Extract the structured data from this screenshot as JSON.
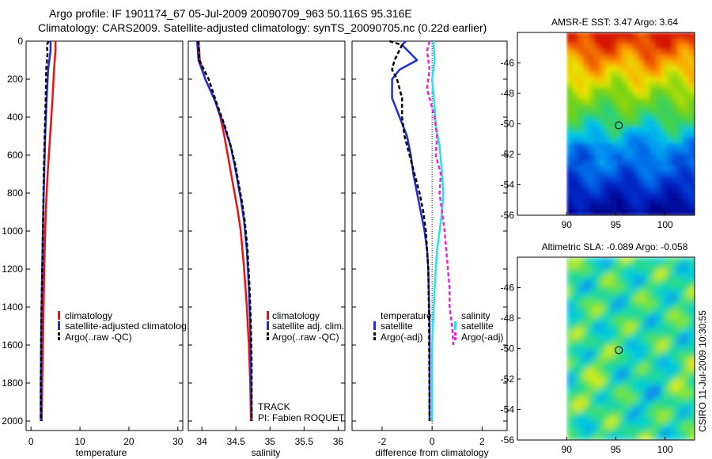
{
  "header": {
    "line1": "Argo profile: IF 1901174_67 05-Jul-2009 20090709_963 50.116S 95.316E",
    "line2": "Climatology: CARS2009. Satellite-adjusted climatology: synTS_20090705.nc (0.22d earlier)"
  },
  "side_label": "CSIRO 11-Jul-2009 10:30:55",
  "colors": {
    "climatology": "#ee1111",
    "satellite": "#1f2fd6",
    "argo": "#000000",
    "salinity_sat": "#22e5e8",
    "salinity_argo": "#ee22dd"
  },
  "chart_data": [
    {
      "id": "temperature",
      "type": "line",
      "xlabel": "temperature",
      "ylabel": "",
      "xlim": [
        -1,
        31
      ],
      "ylim": [
        2050,
        0
      ],
      "xticks": [
        0,
        10,
        20,
        30
      ],
      "yticks": [
        0,
        200,
        400,
        600,
        800,
        1000,
        1200,
        1400,
        1600,
        1800,
        2000
      ],
      "series": [
        {
          "name": "climatology",
          "color": "#ee1111",
          "dash": "",
          "width": 2.5,
          "points": [
            [
              5.0,
              0
            ],
            [
              5.0,
              50
            ],
            [
              4.7,
              150
            ],
            [
              4.4,
              300
            ],
            [
              3.9,
              500
            ],
            [
              3.4,
              700
            ],
            [
              3.0,
              900
            ],
            [
              2.7,
              1200
            ],
            [
              2.5,
              1500
            ],
            [
              2.3,
              1800
            ],
            [
              2.2,
              2000
            ]
          ]
        },
        {
          "name": "satellite-adjusted climatology",
          "color": "#1f2fd6",
          "dash": "",
          "width": 2.5,
          "points": [
            [
              4.0,
              0
            ],
            [
              4.0,
              50
            ],
            [
              3.5,
              150
            ],
            [
              3.2,
              300
            ],
            [
              2.9,
              500
            ],
            [
              2.7,
              700
            ],
            [
              2.5,
              900
            ],
            [
              2.3,
              1200
            ],
            [
              2.1,
              1500
            ],
            [
              2.0,
              1800
            ],
            [
              2.0,
              2000
            ]
          ]
        },
        {
          "name": "Argo(..raw -QC)",
          "color": "#000000",
          "dash": "5,3",
          "width": 2.5,
          "points": [
            [
              3.6,
              0
            ],
            [
              3.2,
              20
            ],
            [
              3.4,
              60
            ],
            [
              3.1,
              150
            ],
            [
              3.0,
              300
            ],
            [
              2.8,
              500
            ],
            [
              2.6,
              700
            ],
            [
              2.5,
              900
            ],
            [
              2.3,
              1200
            ],
            [
              2.1,
              1500
            ],
            [
              2.0,
              1800
            ],
            [
              2.0,
              2000
            ]
          ]
        }
      ],
      "legend": {
        "entries": [
          "climatology",
          "satellite-adjusted climatolog",
          "Argo(..raw -QC)"
        ]
      }
    },
    {
      "id": "salinity",
      "type": "line",
      "xlabel": "salinity",
      "xlim": [
        33.8,
        36.1
      ],
      "ylim": [
        2050,
        0
      ],
      "xticks": [
        34,
        34.5,
        35,
        35.5,
        36
      ],
      "tick_labels": [
        "34",
        "34.5",
        "35",
        "35.5",
        "36"
      ],
      "series": [
        {
          "name": "climatology",
          "color": "#ee1111",
          "dash": "",
          "width": 2.5,
          "points": [
            [
              33.95,
              0
            ],
            [
              33.97,
              100
            ],
            [
              34.05,
              200
            ],
            [
              34.18,
              300
            ],
            [
              34.27,
              400
            ],
            [
              34.33,
              500
            ],
            [
              34.38,
              600
            ],
            [
              34.43,
              700
            ],
            [
              34.48,
              800
            ],
            [
              34.53,
              900
            ],
            [
              34.57,
              1000
            ],
            [
              34.62,
              1200
            ],
            [
              34.66,
              1400
            ],
            [
              34.69,
              1600
            ],
            [
              34.71,
              1800
            ],
            [
              34.72,
              2000
            ]
          ]
        },
        {
          "name": "satellite adj. clim.",
          "color": "#1f2fd6",
          "dash": "",
          "width": 2.5,
          "points": [
            [
              33.93,
              0
            ],
            [
              33.95,
              100
            ],
            [
              34.05,
              200
            ],
            [
              34.2,
              320
            ],
            [
              34.33,
              450
            ],
            [
              34.42,
              550
            ],
            [
              34.48,
              650
            ],
            [
              34.53,
              750
            ],
            [
              34.58,
              850
            ],
            [
              34.62,
              950
            ],
            [
              34.66,
              1100
            ],
            [
              34.69,
              1300
            ],
            [
              34.71,
              1500
            ],
            [
              34.72,
              1700
            ],
            [
              34.73,
              2000
            ]
          ]
        },
        {
          "name": "Argo(..raw -QC)",
          "color": "#000000",
          "dash": "5,3",
          "width": 2.5,
          "points": [
            [
              33.95,
              0
            ],
            [
              33.96,
              100
            ],
            [
              34.1,
              200
            ],
            [
              34.21,
              320
            ],
            [
              34.34,
              450
            ],
            [
              34.43,
              560
            ],
            [
              34.49,
              650
            ],
            [
              34.54,
              750
            ],
            [
              34.59,
              850
            ],
            [
              34.63,
              950
            ],
            [
              34.67,
              1100
            ],
            [
              34.7,
              1300
            ],
            [
              34.72,
              1500
            ],
            [
              34.73,
              1700
            ],
            [
              34.73,
              2000
            ]
          ]
        }
      ],
      "legend": {
        "entries": [
          "climatology",
          "satellite adj. clim.",
          "Argo(..raw -QC)"
        ]
      },
      "annotations": [
        "TRACK",
        "PI: Fabien ROQUET"
      ]
    },
    {
      "id": "difference",
      "type": "line",
      "xlabel": "difference from climatology",
      "xlim": [
        -3.2,
        3.0
      ],
      "ylim": [
        2050,
        0
      ],
      "xticks": [
        -2,
        0,
        2
      ],
      "tick_labels": [
        "-2",
        "0",
        "2"
      ],
      "series": [
        {
          "name": "temperature satellite",
          "color": "#1f2fd6",
          "dash": "",
          "width": 2.5,
          "points": [
            [
              -1.05,
              0
            ],
            [
              -1.2,
              20
            ],
            [
              -0.6,
              100
            ],
            [
              -1.3,
              150
            ],
            [
              -1.6,
              200
            ],
            [
              -1.6,
              300
            ],
            [
              -1.3,
              400
            ],
            [
              -1.0,
              500
            ],
            [
              -0.85,
              600
            ],
            [
              -0.75,
              700
            ],
            [
              -0.6,
              800
            ],
            [
              -0.45,
              900
            ],
            [
              -0.3,
              1000
            ],
            [
              -0.2,
              1100
            ],
            [
              -0.15,
              1200
            ],
            [
              -0.1,
              1500
            ],
            [
              -0.1,
              2000
            ]
          ]
        },
        {
          "name": "temperature Argo(-adj)",
          "color": "#000000",
          "dash": "5,3",
          "width": 2.5,
          "points": [
            [
              -1.7,
              0
            ],
            [
              -1.2,
              20
            ],
            [
              -1.5,
              100
            ],
            [
              -1.6,
              150
            ],
            [
              -1.4,
              200
            ],
            [
              -1.2,
              300
            ],
            [
              -1.2,
              400
            ],
            [
              -1.1,
              500
            ],
            [
              -0.9,
              600
            ],
            [
              -0.7,
              700
            ],
            [
              -0.5,
              800
            ],
            [
              -0.35,
              900
            ],
            [
              -0.25,
              1000
            ],
            [
              -0.15,
              1200
            ],
            [
              -0.12,
              1500
            ],
            [
              -0.1,
              2000
            ]
          ]
        },
        {
          "name": "salinity satellite",
          "color": "#22e5e8",
          "dash": "",
          "width": 2.5,
          "points": [
            [
              0.05,
              0
            ],
            [
              0.1,
              100
            ],
            [
              0.0,
              200
            ],
            [
              0.1,
              350
            ],
            [
              0.15,
              450
            ],
            [
              0.3,
              550
            ],
            [
              0.4,
              700
            ],
            [
              0.45,
              800
            ],
            [
              0.4,
              900
            ],
            [
              0.3,
              1000
            ],
            [
              0.2,
              1100
            ],
            [
              0.1,
              1300
            ],
            [
              0.0,
              1600
            ],
            [
              0.0,
              2000
            ]
          ]
        },
        {
          "name": "salinity Argo(-adj)",
          "color": "#ee22dd",
          "dash": "5,3",
          "width": 2.5,
          "points": [
            [
              -0.1,
              0
            ],
            [
              -0.2,
              50
            ],
            [
              -0.1,
              150
            ],
            [
              -0.2,
              250
            ],
            [
              0.1,
              400
            ],
            [
              0.2,
              500
            ],
            [
              0.15,
              600
            ],
            [
              0.35,
              700
            ],
            [
              0.3,
              800
            ],
            [
              0.5,
              1000
            ],
            [
              0.6,
              1150
            ],
            [
              0.7,
              1300
            ],
            [
              0.7,
              1400
            ],
            [
              0.8,
              1500
            ],
            [
              0.85,
              1600
            ]
          ]
        }
      ],
      "legend": {
        "temperature_title": "temperature",
        "salinity_title": "salinity",
        "entries": [
          "satellite",
          "Argo(-adj)",
          "satellite",
          "Argo(-adj)"
        ]
      }
    },
    {
      "id": "sst_map",
      "type": "heatmap",
      "title": "AMSR-E SST: 3.47 Argo: 3.64",
      "xlim": [
        85,
        103
      ],
      "ylim": [
        -56,
        -44
      ],
      "xticks": [
        90,
        95,
        100
      ],
      "yticks": [
        -46,
        -48,
        -50,
        -52,
        -54,
        -56
      ],
      "data_xlim": [
        90,
        103
      ],
      "marker": [
        95.3,
        -50.1
      ]
    },
    {
      "id": "sla_map",
      "type": "heatmap",
      "title": "Altimetric SLA: -0.089 Argo: -0.058",
      "xlim": [
        85,
        103
      ],
      "ylim": [
        -56,
        -44
      ],
      "xticks": [
        90,
        95,
        100
      ],
      "yticks": [
        -46,
        -48,
        -50,
        -52,
        -54,
        -56
      ],
      "data_xlim": [
        90,
        103
      ],
      "marker": [
        95.3,
        -50.1
      ]
    }
  ]
}
